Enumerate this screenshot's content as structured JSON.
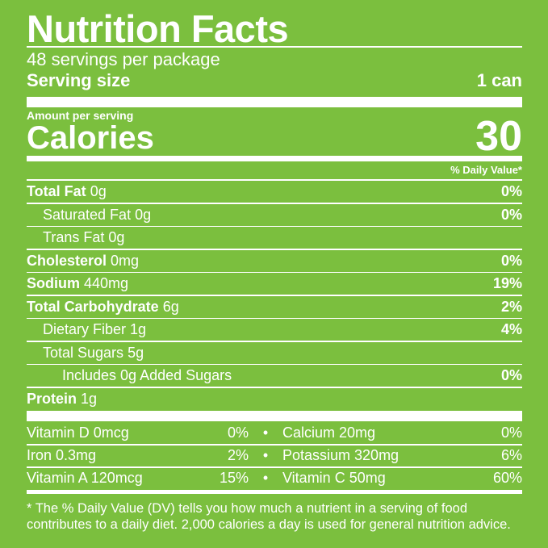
{
  "title": "Nutrition Facts",
  "servings_per_package": "48 servings per package",
  "serving_size": {
    "label": "Serving size",
    "value": "1 can"
  },
  "amount_per_serving": "Amount per serving",
  "calories": {
    "label": "Calories",
    "value": "30"
  },
  "daily_value_header": "% Daily Value*",
  "nutrients": [
    {
      "name": "Total Fat",
      "amount": "0g",
      "dv": "0%",
      "bold": true,
      "indent": 0
    },
    {
      "name": "Saturated Fat",
      "amount": "0g",
      "dv": "0%",
      "bold": false,
      "indent": 1
    },
    {
      "name": "Trans Fat",
      "amount": "0g",
      "dv": "",
      "bold": false,
      "indent": 1
    },
    {
      "name": "Cholesterol",
      "amount": "0mg",
      "dv": "0%",
      "bold": true,
      "indent": 0
    },
    {
      "name": "Sodium",
      "amount": "440mg",
      "dv": "19%",
      "bold": true,
      "indent": 0
    },
    {
      "name": "Total Carbohydrate",
      "amount": "6g",
      "dv": "2%",
      "bold": true,
      "indent": 0
    },
    {
      "name": "Dietary Fiber",
      "amount": "1g",
      "dv": "4%",
      "bold": false,
      "indent": 1
    },
    {
      "name": "Total Sugars",
      "amount": "5g",
      "dv": "",
      "bold": false,
      "indent": 1
    },
    {
      "name": "Includes 0g Added Sugars",
      "amount": "",
      "dv": "0%",
      "bold": false,
      "indent": 2
    },
    {
      "name": "Protein",
      "amount": "1g",
      "dv": "",
      "bold": true,
      "indent": 0
    }
  ],
  "vitamins": [
    {
      "left": {
        "name": "Vitamin D 0mcg",
        "dv": "0%"
      },
      "sep": "•",
      "right": {
        "name": "Calcium 20mg",
        "dv": "0%"
      }
    },
    {
      "left": {
        "name": "Iron 0.3mg",
        "dv": "2%"
      },
      "sep": "•",
      "right": {
        "name": "Potassium 320mg",
        "dv": "6%"
      }
    },
    {
      "left": {
        "name": "Vitamin A 120mcg",
        "dv": "15%"
      },
      "sep": "•",
      "right": {
        "name": "Vitamin C 50mg",
        "dv": "60%"
      }
    }
  ],
  "footnote": "* The % Daily Value (DV) tells you how much a nutrient in a serving of food contributes to a daily diet. 2,000 calories a day is used for general nutrition advice.",
  "colors": {
    "background": "#7bbf3e",
    "text": "#ffffff"
  }
}
